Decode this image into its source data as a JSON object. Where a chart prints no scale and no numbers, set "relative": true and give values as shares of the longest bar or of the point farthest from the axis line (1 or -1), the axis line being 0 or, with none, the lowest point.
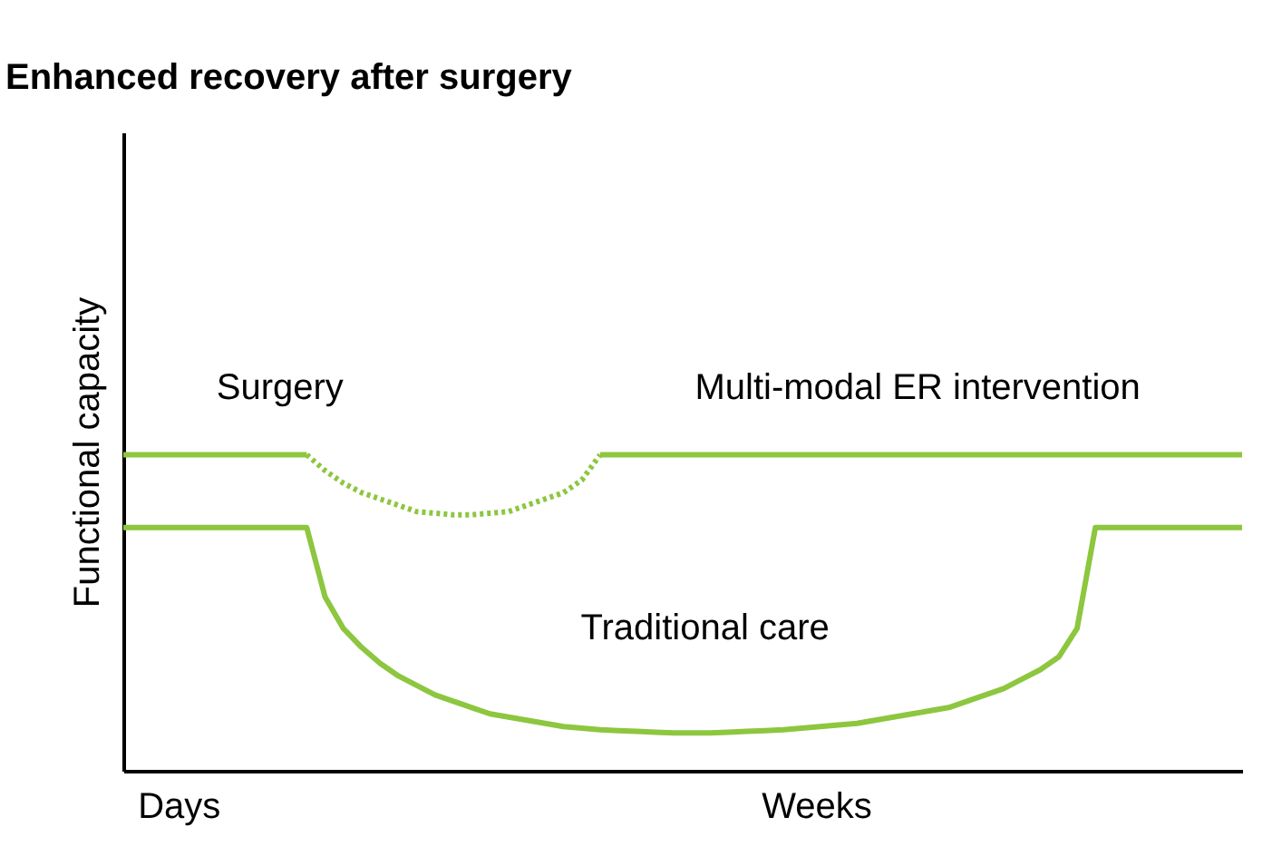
{
  "chart_data": {
    "type": "line",
    "title": "Enhanced recovery after surgery",
    "ylabel": "Functional capacity",
    "relative": true,
    "grid": false,
    "marker": "none",
    "categories": [
      null,
      null,
      null,
      null,
      null,
      null,
      null,
      null,
      null,
      null,
      null,
      null,
      null,
      null,
      null,
      null,
      null,
      null,
      null,
      null,
      null,
      null,
      null,
      null,
      null,
      null,
      null,
      null,
      null,
      null,
      null,
      null,
      null,
      null,
      null,
      null,
      null,
      null,
      null,
      null,
      null,
      null,
      null,
      null,
      null,
      null,
      null,
      null,
      null,
      null,
      null,
      null,
      null,
      null,
      null,
      null,
      null,
      null,
      null,
      null,
      null,
      null
    ],
    "series": [
      {
        "name": "Multi-modal ER intervention",
        "color": "#8dc63f",
        "line_style": "solid",
        "values": [
          1,
          1,
          1,
          1,
          1,
          1,
          1,
          1,
          1,
          1,
          1,
          null,
          null,
          null,
          null,
          null,
          null,
          null,
          null,
          null,
          null,
          null,
          null,
          null,
          null,
          null,
          1,
          1,
          1,
          1,
          1,
          1,
          1,
          1,
          1,
          1,
          1,
          1,
          1,
          1,
          1,
          1,
          1,
          1,
          1,
          1,
          1,
          1,
          1,
          1,
          1,
          1,
          1,
          1,
          1,
          1,
          1,
          1,
          1,
          1,
          1,
          1
        ]
      },
      {
        "color": "#8dc63f",
        "line_style": "dotted",
        "values": [
          null,
          null,
          null,
          null,
          null,
          null,
          null,
          null,
          null,
          null,
          1,
          0.95,
          0.91,
          0.88,
          0.86,
          0.84,
          0.82,
          0.815,
          0.81,
          0.81,
          0.815,
          0.82,
          0.84,
          0.86,
          0.88,
          0.92,
          1,
          null,
          null,
          null,
          null,
          null,
          null,
          null,
          null,
          null,
          null,
          null,
          null,
          null,
          null,
          null,
          null,
          null,
          null,
          null,
          null,
          null,
          null,
          null,
          null,
          null,
          null,
          null,
          null,
          null,
          null,
          null,
          null,
          null,
          null,
          null
        ]
      },
      {
        "name": "Traditional care",
        "color": "#8dc63f",
        "line_style": "solid",
        "values": [
          0.77,
          0.77,
          0.77,
          0.77,
          0.77,
          0.77,
          0.77,
          0.77,
          0.77,
          0.77,
          0.77,
          0.55,
          0.45,
          0.39,
          0.34,
          0.3,
          0.27,
          0.24,
          0.22,
          0.2,
          0.18,
          0.17,
          0.16,
          0.15,
          0.14,
          0.135,
          0.13,
          0.127,
          0.125,
          0.122,
          0.12,
          0.12,
          0.12,
          0.122,
          0.125,
          0.127,
          0.13,
          0.135,
          0.14,
          0.145,
          0.15,
          0.16,
          0.17,
          0.18,
          0.19,
          0.2,
          0.22,
          0.24,
          0.26,
          0.29,
          0.32,
          0.36,
          0.45,
          0.77,
          0.77,
          0.77,
          0.77,
          0.77,
          0.77,
          0.77,
          0.77,
          0.77
        ]
      }
    ],
    "annotations": [
      "Surgery",
      "Days",
      "Weeks"
    ]
  }
}
